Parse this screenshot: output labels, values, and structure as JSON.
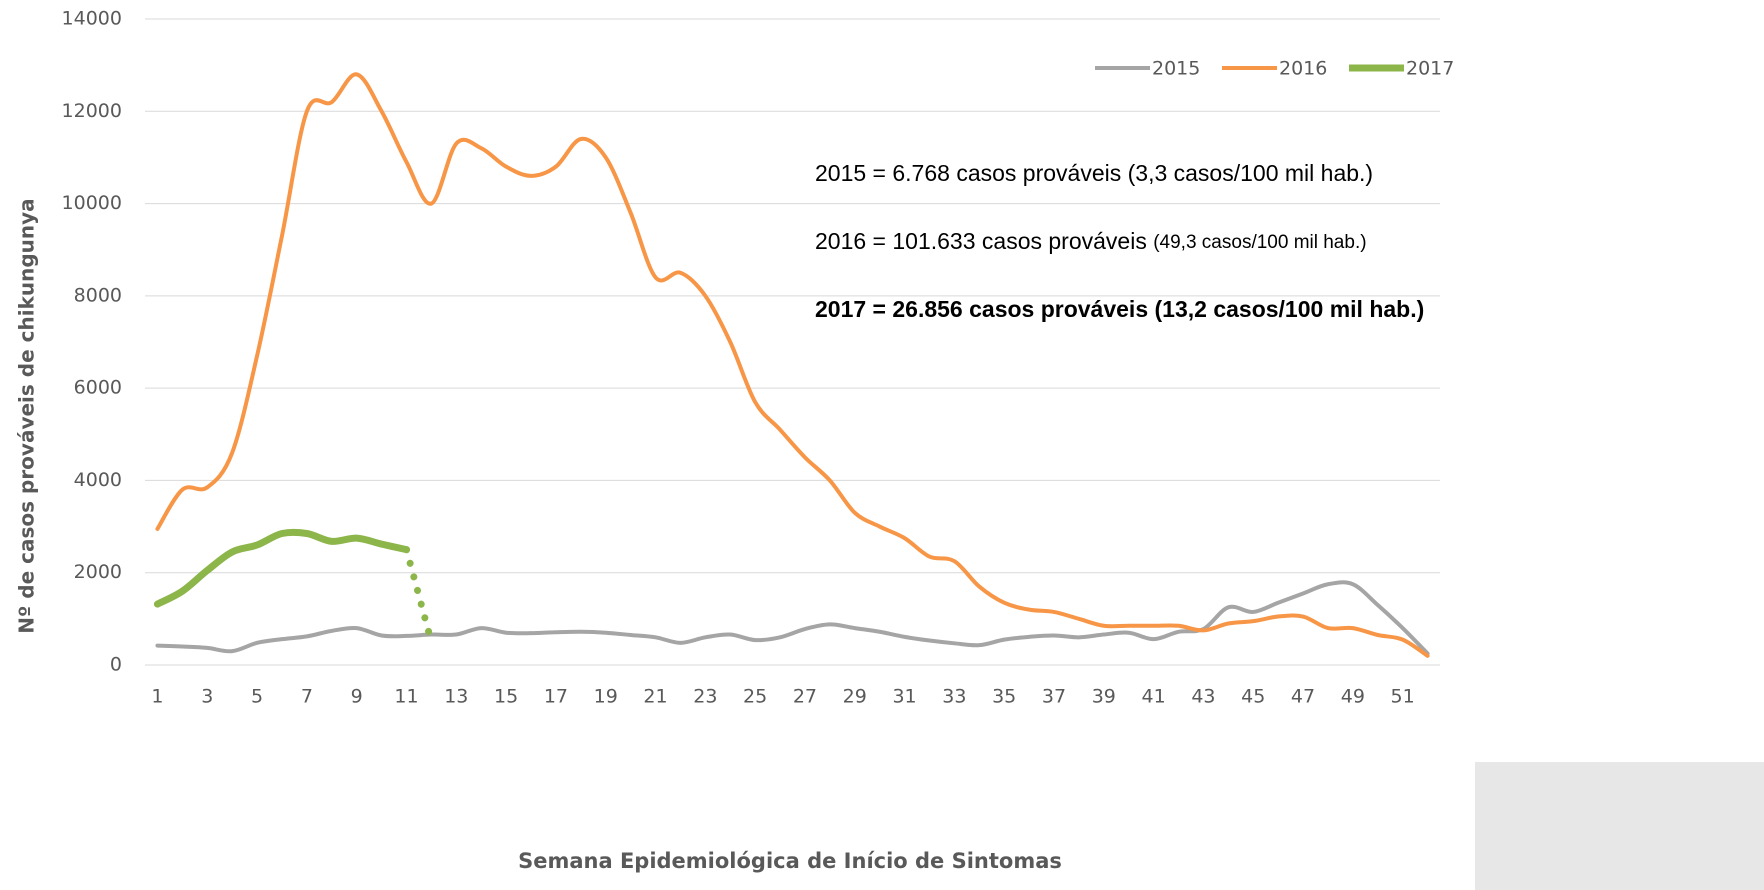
{
  "chart_data": {
    "type": "line",
    "x_label": "Semana Epidemiológica de Início de Sintomas",
    "y_label": "Nº de casos prováveis de chikungunya",
    "x": [
      1,
      2,
      3,
      4,
      5,
      6,
      7,
      8,
      9,
      10,
      11,
      12,
      13,
      14,
      15,
      16,
      17,
      18,
      19,
      20,
      21,
      22,
      23,
      24,
      25,
      26,
      27,
      28,
      29,
      30,
      31,
      32,
      33,
      34,
      35,
      36,
      37,
      38,
      39,
      40,
      41,
      42,
      43,
      44,
      45,
      46,
      47,
      48,
      49,
      50,
      51,
      52
    ],
    "xlim": [
      0.5,
      52.5
    ],
    "xticks": [
      1,
      3,
      5,
      7,
      9,
      11,
      13,
      15,
      17,
      19,
      21,
      23,
      25,
      27,
      29,
      31,
      33,
      35,
      37,
      39,
      41,
      43,
      45,
      47,
      49,
      51
    ],
    "ylim": [
      0,
      14000
    ],
    "yticks": [
      0,
      2000,
      4000,
      6000,
      8000,
      10000,
      12000,
      14000
    ],
    "grid": true,
    "legend": "top-right",
    "series": [
      {
        "name": "2015",
        "color": "#a5a5a5",
        "width": 4,
        "values": [
          420,
          400,
          370,
          300,
          480,
          560,
          620,
          740,
          800,
          640,
          630,
          660,
          660,
          800,
          700,
          690,
          710,
          720,
          700,
          650,
          600,
          480,
          600,
          660,
          540,
          600,
          780,
          880,
          800,
          720,
          610,
          530,
          470,
          430,
          550,
          610,
          640,
          600,
          660,
          700,
          560,
          720,
          780,
          1250,
          1150,
          1350,
          1550,
          1750,
          1750,
          1300,
          800,
          250
        ]
      },
      {
        "name": "2016",
        "color": "#f79646",
        "width": 4,
        "values": [
          2950,
          3800,
          3850,
          4600,
          6700,
          9300,
          12000,
          12200,
          12800,
          12000,
          10900,
          10000,
          11300,
          11200,
          10800,
          10600,
          10800,
          11400,
          11000,
          9800,
          8400,
          8500,
          8000,
          7000,
          5700,
          5100,
          4500,
          4000,
          3300,
          3000,
          2750,
          2350,
          2250,
          1700,
          1350,
          1200,
          1150,
          1000,
          850,
          850,
          850,
          850,
          750,
          900,
          950,
          1050,
          1050,
          800,
          800,
          650,
          550,
          200
        ]
      },
      {
        "name": "2017",
        "color": "#8cb54a",
        "width": 7,
        "dotted_after": 11,
        "values": [
          1320,
          1600,
          2050,
          2450,
          2600,
          2850,
          2850,
          2680,
          2750,
          2620,
          2500,
          500,
          null,
          null,
          null,
          null,
          null,
          null,
          null,
          null,
          null,
          null,
          null,
          null,
          null,
          null,
          null,
          null,
          null,
          null,
          null,
          null,
          null,
          null,
          null,
          null,
          null,
          null,
          null,
          null,
          null,
          null,
          null,
          null,
          null,
          null,
          null,
          null,
          null,
          null,
          null,
          null
        ]
      }
    ],
    "annotations": [
      {
        "bold": false,
        "parts": [
          {
            "text": "2015 = 6.768 casos prováveis (3,3 casos/100 mil hab.)",
            "small": false
          }
        ]
      },
      {
        "bold": false,
        "parts": [
          {
            "text": "2016 = 101.633 casos prováveis ",
            "small": false
          },
          {
            "text": "(49,3 casos/100 mil hab.)",
            "small": true
          }
        ]
      },
      {
        "bold": true,
        "parts": [
          {
            "text": "2017 = 26.856 casos prováveis (13,2 casos/100 mil hab.)",
            "small": false
          }
        ]
      }
    ]
  }
}
